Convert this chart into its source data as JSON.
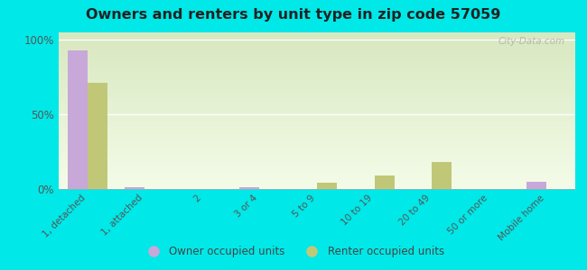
{
  "title": "Owners and renters by unit type in zip code 57059",
  "categories": [
    "1, detached",
    "1, attached",
    "2",
    "3 or 4",
    "5 to 9",
    "10 to 19",
    "20 to 49",
    "50 or more",
    "Mobile home"
  ],
  "owner_values": [
    93,
    1,
    0,
    1,
    0,
    0,
    0,
    0,
    5
  ],
  "renter_values": [
    71,
    0,
    0,
    0,
    4,
    9,
    18,
    0,
    0
  ],
  "owner_color": "#c8a8d8",
  "renter_color": "#c0c878",
  "background_color": "#00e8e8",
  "plot_bg_top": "#d8e8c0",
  "plot_bg_bottom": "#f4fce8",
  "yticks": [
    0,
    50,
    100
  ],
  "ytick_labels": [
    "0%",
    "50%",
    "100%"
  ],
  "ylim": [
    0,
    105
  ],
  "watermark": "City-Data.com",
  "legend_owner": "Owner occupied units",
  "legend_renter": "Renter occupied units"
}
